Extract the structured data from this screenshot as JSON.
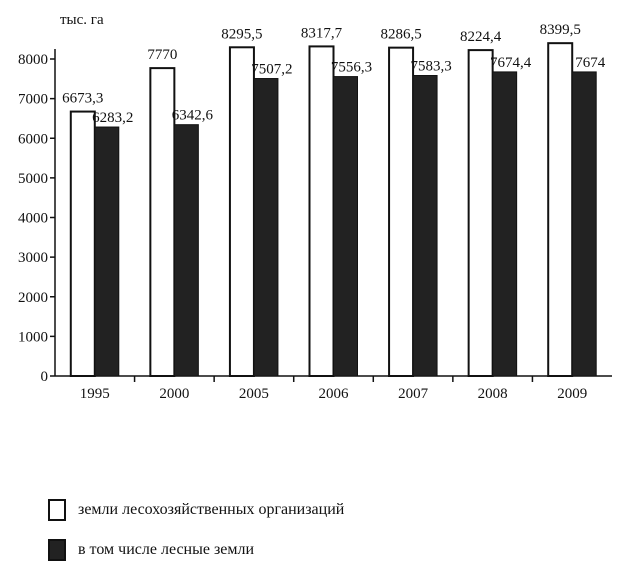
{
  "chart_data": {
    "type": "bar",
    "title": "",
    "ylabel": "тыс. га",
    "xlabel": "",
    "ylim": [
      0,
      8000
    ],
    "yticks": [
      0,
      1000,
      2000,
      3000,
      4000,
      5000,
      6000,
      7000,
      8000
    ],
    "categories": [
      "1995",
      "2000",
      "2005",
      "2006",
      "2007",
      "2008",
      "2009"
    ],
    "series": [
      {
        "name": "земли лесохозяйственных организаций",
        "values": [
          6673.3,
          7770,
          8295.5,
          8317.7,
          8286.5,
          8224.4,
          8399.5
        ],
        "value_labels": [
          "6673,3",
          "7770",
          "8295,5",
          "8317,7",
          "8286,5",
          "8224,4",
          "8399,5"
        ],
        "color": "#ffffff"
      },
      {
        "name": "в том числе лесные земли",
        "values": [
          6283.2,
          6342.6,
          7507.2,
          7556.3,
          7583.3,
          7674.4,
          7674
        ],
        "value_labels": [
          "6283,2",
          "6342,6",
          "7507,2",
          "7556,3",
          "7583,3",
          "7674,4",
          "7674"
        ],
        "color": "#222222"
      }
    ],
    "grid": false,
    "legend_position": "bottom"
  }
}
